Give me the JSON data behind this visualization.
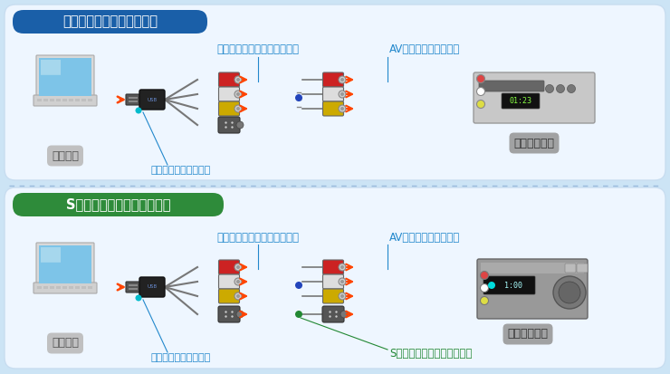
{
  "bg_color": "#cce4f5",
  "panel1_bg": "#eef6ff",
  "panel2_bg": "#eef6ff",
  "title1_text": "ビデオ出力と接続する場合",
  "title1_bg": "#1a5fa8",
  "title1_color": "#ffffff",
  "title2_text": "Sビデオ出力と接続する場合",
  "title2_bg": "#2e8b3a",
  "title2_color": "#ffffff",
  "label_pc": "パソコン",
  "label_capture": "ビデオキャプチャ本体",
  "label_vcr": "ビデオデッキ",
  "label_audio": "オーディオケーブル（付属）",
  "label_av": "AVケーブル（別売り）",
  "label_svideo": "Sビデオケーブル（別売り）",
  "arrow_color": "#ff4400",
  "label_color": "#2288cc",
  "svideo_label_color": "#228833",
  "connector_red": "#cc2222",
  "connector_white": "#dddddd",
  "connector_yellow": "#ccaa00",
  "connector_gray": "#888888"
}
